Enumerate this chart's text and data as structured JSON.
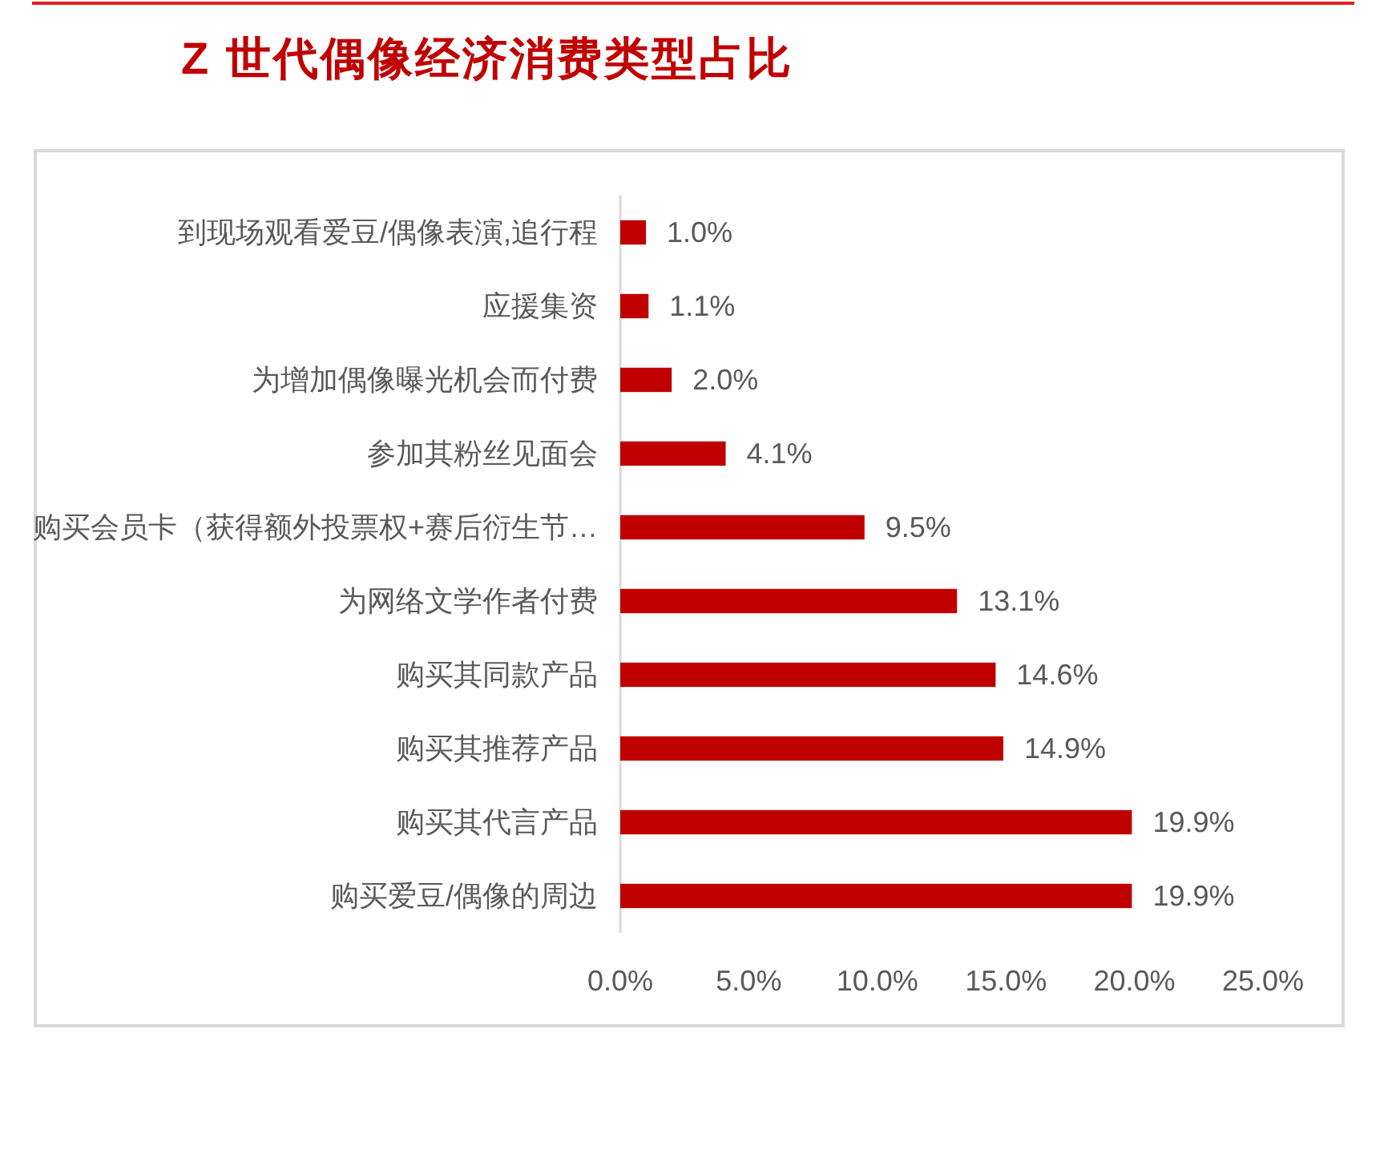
{
  "chart_data": {
    "type": "bar",
    "title": "Z 世代偶像经济消费类型占比",
    "orientation": "horizontal",
    "categories": [
      "到现场观看爱豆/偶像表演,追行程",
      "应援集资",
      "为增加偶像曝光机会而付费",
      "参加其粉丝见面会",
      "购买会员卡（获得额外投票权+赛后衍生节…",
      "为网络文学作者付费",
      "购买其同款产品",
      "购买其推荐产品",
      "购买其代言产品",
      "购买爱豆/偶像的周边"
    ],
    "values": [
      1.0,
      1.1,
      2.0,
      4.1,
      9.5,
      13.1,
      14.6,
      14.9,
      19.9,
      19.9
    ],
    "value_labels": [
      "1.0%",
      "1.1%",
      "2.0%",
      "4.1%",
      "9.5%",
      "13.1%",
      "14.6%",
      "14.9%",
      "19.9%",
      "19.9%"
    ],
    "color": "#c00000",
    "xlim": [
      0,
      25
    ],
    "xticks": [
      {
        "value": 0,
        "label": "0.0%"
      },
      {
        "value": 5,
        "label": "5.0%"
      },
      {
        "value": 10,
        "label": "10.0%"
      },
      {
        "value": 15,
        "label": "15.0%"
      },
      {
        "value": 20,
        "label": "20.0%"
      },
      {
        "value": 25,
        "label": "25.0%"
      }
    ]
  }
}
